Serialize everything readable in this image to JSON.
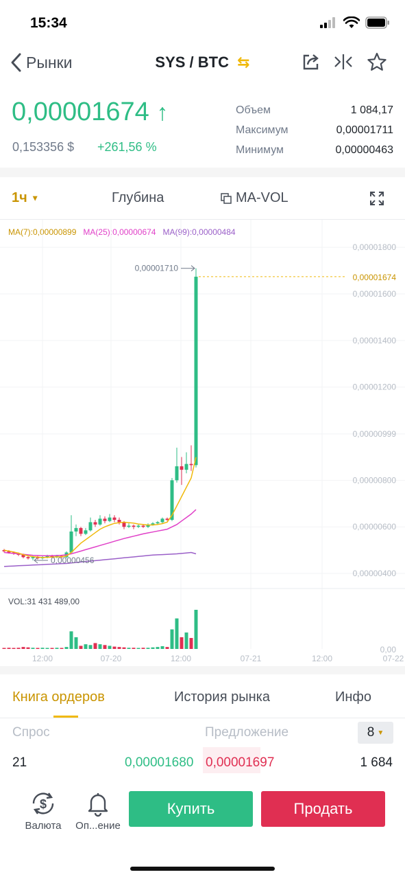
{
  "status": {
    "time": "15:34"
  },
  "header": {
    "back_label": "Рынки",
    "pair": "SYS / BTC",
    "swap_icon": "swap-icon"
  },
  "ticker": {
    "price": "0,00001674",
    "fiat": "0,153356 $",
    "change": "+261,56 %",
    "stats": [
      {
        "label": "Объем",
        "value": "1 084,17"
      },
      {
        "label": "Максимум",
        "value": "0,00001711"
      },
      {
        "label": "Минимум",
        "value": "0,00000463"
      }
    ]
  },
  "chart_tabs": {
    "interval": "1ч",
    "depth": "Глубина",
    "mavol": "MA-VOL"
  },
  "ma_labels": {
    "ma7": "MA(7):0,00000899",
    "ma25": "MA(25):0,00000674",
    "ma99": "MA(99):0,00000484"
  },
  "colors": {
    "up": "#2ebd85",
    "down": "#e02f52",
    "accent": "#f0b90b",
    "ma7": "#f0b90b",
    "ma25": "#e040c8",
    "ma99": "#9a5fc8"
  },
  "chart_data": {
    "type": "candlestick",
    "y_axis_labels": [
      "0,00001800",
      "0,00001600",
      "0,00001400",
      "0,00001200",
      "0,00000999",
      "0,00000800",
      "0,00000600",
      "0,00000400"
    ],
    "y_range": [
      3.5e-06,
      1.83e-05
    ],
    "x_axis_labels": [
      "12:00",
      "07-20",
      "12:00",
      "07-21",
      "12:00",
      "07-22"
    ],
    "last_price_label": "0,00001674",
    "last_price": 1.674e-05,
    "high_marker": "0,00001710",
    "low_marker": "0,00000456",
    "candles": [
      {
        "o": 5.0,
        "c": 4.95,
        "h": 5.05,
        "l": 4.9
      },
      {
        "o": 4.95,
        "c": 4.9,
        "h": 5.0,
        "l": 4.85
      },
      {
        "o": 4.9,
        "c": 4.85,
        "h": 4.95,
        "l": 4.8
      },
      {
        "o": 4.85,
        "c": 4.8,
        "h": 4.9,
        "l": 4.75
      },
      {
        "o": 4.8,
        "c": 4.7,
        "h": 4.85,
        "l": 4.65
      },
      {
        "o": 4.7,
        "c": 4.65,
        "h": 4.75,
        "l": 4.6
      },
      {
        "o": 4.65,
        "c": 4.7,
        "h": 4.75,
        "l": 4.56
      },
      {
        "o": 4.7,
        "c": 4.65,
        "h": 4.75,
        "l": 4.6
      },
      {
        "o": 4.65,
        "c": 4.7,
        "h": 4.75,
        "l": 4.6
      },
      {
        "o": 4.7,
        "c": 4.75,
        "h": 4.8,
        "l": 4.65
      },
      {
        "o": 4.75,
        "c": 4.7,
        "h": 4.8,
        "l": 4.65
      },
      {
        "o": 4.7,
        "c": 4.75,
        "h": 4.8,
        "l": 4.65
      },
      {
        "o": 4.75,
        "c": 4.7,
        "h": 4.8,
        "l": 4.65
      },
      {
        "o": 4.7,
        "c": 4.9,
        "h": 4.95,
        "l": 4.65
      },
      {
        "o": 4.9,
        "c": 5.8,
        "h": 6.5,
        "l": 4.85
      },
      {
        "o": 5.8,
        "c": 5.95,
        "h": 6.1,
        "l": 5.6
      },
      {
        "o": 5.95,
        "c": 5.7,
        "h": 6.0,
        "l": 5.6
      },
      {
        "o": 5.7,
        "c": 5.85,
        "h": 5.95,
        "l": 5.65
      },
      {
        "o": 5.85,
        "c": 6.2,
        "h": 6.4,
        "l": 5.8
      },
      {
        "o": 6.2,
        "c": 6.1,
        "h": 6.3,
        "l": 6.0
      },
      {
        "o": 6.1,
        "c": 6.35,
        "h": 6.5,
        "l": 6.05
      },
      {
        "o": 6.35,
        "c": 6.25,
        "h": 6.45,
        "l": 6.15
      },
      {
        "o": 6.25,
        "c": 6.4,
        "h": 6.55,
        "l": 6.2
      },
      {
        "o": 6.4,
        "c": 6.3,
        "h": 6.5,
        "l": 6.2
      },
      {
        "o": 6.3,
        "c": 6.2,
        "h": 6.4,
        "l": 6.1
      },
      {
        "o": 6.2,
        "c": 6.0,
        "h": 6.25,
        "l": 5.9
      },
      {
        "o": 6.0,
        "c": 6.05,
        "h": 6.15,
        "l": 5.95
      },
      {
        "o": 6.05,
        "c": 6.0,
        "h": 6.1,
        "l": 5.9
      },
      {
        "o": 6.0,
        "c": 6.05,
        "h": 6.1,
        "l": 5.95
      },
      {
        "o": 6.05,
        "c": 6.0,
        "h": 6.1,
        "l": 5.95
      },
      {
        "o": 6.0,
        "c": 6.1,
        "h": 6.15,
        "l": 5.95
      },
      {
        "o": 6.1,
        "c": 6.15,
        "h": 6.2,
        "l": 6.05
      },
      {
        "o": 6.15,
        "c": 6.2,
        "h": 6.25,
        "l": 6.1
      },
      {
        "o": 6.2,
        "c": 6.35,
        "h": 6.4,
        "l": 6.15
      },
      {
        "o": 6.35,
        "c": 6.3,
        "h": 6.4,
        "l": 6.25
      },
      {
        "o": 6.3,
        "c": 8.0,
        "h": 8.1,
        "l": 6.25
      },
      {
        "o": 8.0,
        "c": 8.6,
        "h": 9.4,
        "l": 7.9
      },
      {
        "o": 8.6,
        "c": 8.45,
        "h": 9.0,
        "l": 7.8
      },
      {
        "o": 8.45,
        "c": 8.7,
        "h": 9.2,
        "l": 8.3
      },
      {
        "o": 8.7,
        "c": 8.65,
        "h": 9.5,
        "l": 8.4
      },
      {
        "o": 8.65,
        "c": 16.74,
        "h": 17.1,
        "l": 8.55
      }
    ],
    "ma7": [
      5.0,
      4.96,
      4.92,
      4.87,
      4.81,
      4.76,
      4.72,
      4.7,
      4.68,
      4.69,
      4.7,
      4.71,
      4.72,
      4.75,
      4.9,
      5.1,
      5.3,
      5.45,
      5.6,
      5.75,
      5.9,
      6.0,
      6.08,
      6.15,
      6.18,
      6.2,
      6.18,
      6.16,
      6.12,
      6.1,
      6.08,
      6.08,
      6.1,
      6.14,
      6.2,
      6.5,
      6.9,
      7.3,
      7.7,
      8.1,
      8.99
    ],
    "ma25": [
      4.9,
      4.88,
      4.86,
      4.84,
      4.82,
      4.8,
      4.78,
      4.77,
      4.76,
      4.76,
      4.76,
      4.77,
      4.78,
      4.8,
      4.84,
      4.9,
      4.96,
      5.02,
      5.08,
      5.14,
      5.2,
      5.26,
      5.32,
      5.38,
      5.44,
      5.5,
      5.55,
      5.6,
      5.65,
      5.7,
      5.74,
      5.78,
      5.82,
      5.86,
      5.9,
      6.0,
      6.1,
      6.25,
      6.4,
      6.55,
      6.74
    ],
    "ma99": [
      4.3,
      4.31,
      4.32,
      4.33,
      4.34,
      4.35,
      4.36,
      4.37,
      4.38,
      4.39,
      4.4,
      4.41,
      4.42,
      4.43,
      4.45,
      4.47,
      4.49,
      4.51,
      4.53,
      4.55,
      4.57,
      4.59,
      4.61,
      4.63,
      4.65,
      4.67,
      4.69,
      4.71,
      4.73,
      4.75,
      4.77,
      4.79,
      4.8,
      4.81,
      4.82,
      4.83,
      4.84,
      4.86,
      4.88,
      4.9,
      4.84
    ],
    "volume_label": "VOL:31 431 489,00",
    "volume_zero_label": "0,00",
    "volumes": [
      0.02,
      0.03,
      0.02,
      0.03,
      0.05,
      0.04,
      0.03,
      0.02,
      0.03,
      0.02,
      0.02,
      0.03,
      0.02,
      0.05,
      0.45,
      0.3,
      0.08,
      0.12,
      0.1,
      0.15,
      0.12,
      0.1,
      0.08,
      0.06,
      0.05,
      0.04,
      0.03,
      0.03,
      0.02,
      0.03,
      0.03,
      0.04,
      0.05,
      0.07,
      0.05,
      0.5,
      0.78,
      0.3,
      0.42,
      0.28,
      1.0
    ]
  },
  "orderbook": {
    "tabs": [
      "Книга ордеров",
      "История рынка",
      "Инфо"
    ],
    "bid_label": "Спрос",
    "ask_label": "Предложение",
    "depth": "8",
    "row": {
      "bid_qty": "21",
      "bid_price": "0,00001680",
      "ask_price": "0,00001697",
      "ask_qty": "1 684"
    }
  },
  "bottom": {
    "currency_label": "Валюта",
    "alert_label": "Оп...ение",
    "buy_label": "Купить",
    "sell_label": "Продать"
  }
}
